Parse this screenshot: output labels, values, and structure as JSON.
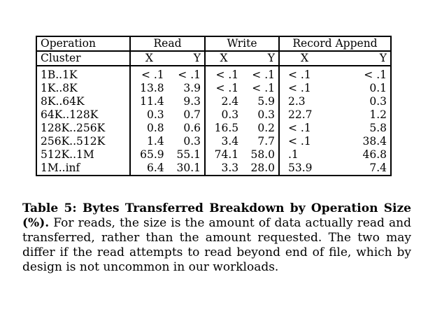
{
  "table": {
    "header1": {
      "col0": "Operation",
      "read": "Read",
      "write": "Write",
      "append": "Record Append"
    },
    "header2": {
      "col0": "Cluster",
      "x": "X",
      "y": "Y"
    },
    "rows": [
      {
        "label": "1B..1K",
        "read_x": "< .1",
        "read_y": "< .1",
        "write_x": "< .1",
        "write_y": "< .1",
        "append_x": "< .1",
        "append_y": "< .1"
      },
      {
        "label": "1K..8K",
        "read_x": "13.8",
        "read_y": "3.9",
        "write_x": "< .1",
        "write_y": "< .1",
        "append_x": "< .1",
        "append_y": "0.1"
      },
      {
        "label": "8K..64K",
        "read_x": "11.4",
        "read_y": "9.3",
        "write_x": "2.4",
        "write_y": "5.9",
        "append_x": "2.3",
        "append_y": "0.3"
      },
      {
        "label": "64K..128K",
        "read_x": "0.3",
        "read_y": "0.7",
        "write_x": "0.3",
        "write_y": "0.3",
        "append_x": "22.7",
        "append_y": "1.2"
      },
      {
        "label": "128K..256K",
        "read_x": "0.8",
        "read_y": "0.6",
        "write_x": "16.5",
        "write_y": "0.2",
        "append_x": "< .1",
        "append_y": "5.8"
      },
      {
        "label": "256K..512K",
        "read_x": "1.4",
        "read_y": "0.3",
        "write_x": "3.4",
        "write_y": "7.7",
        "append_x": "< .1",
        "append_y": "38.4"
      },
      {
        "label": "512K..1M",
        "read_x": "65.9",
        "read_y": "55.1",
        "write_x": "74.1",
        "write_y": "58.0",
        "append_x": ".1",
        "append_y": "46.8"
      },
      {
        "label": "1M..inf",
        "read_x": "6.4",
        "read_y": "30.1",
        "write_x": "3.3",
        "write_y": "28.0",
        "append_x": "53.9",
        "append_y": "7.4"
      }
    ]
  },
  "caption": {
    "bold": "Table 5: Bytes Transferred Breakdown by Operation Size (%).",
    "text": " For reads, the size is the amount of data actually read and transferred, rather than the amount requested. The two may differ if the read attempts to read beyond end of file, which by design is not uncommon in our workloads."
  }
}
